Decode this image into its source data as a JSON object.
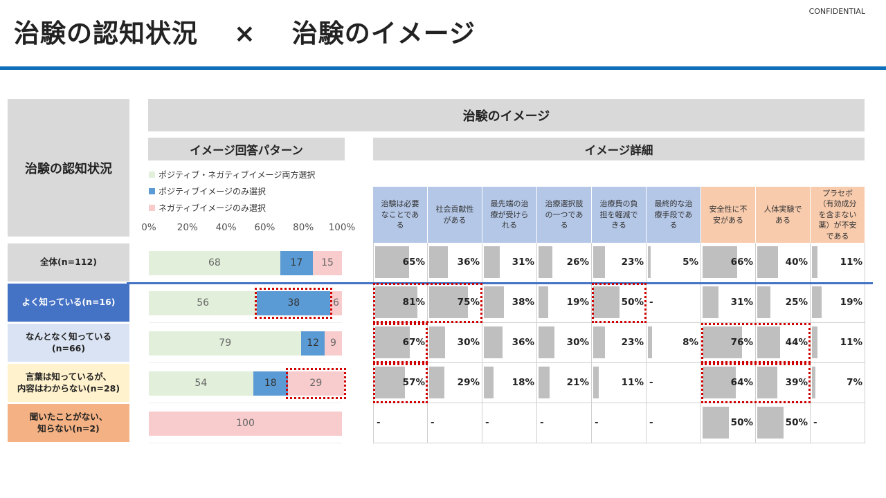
{
  "title": "治験の認知状況　 ×　 治験のイメージ",
  "confidential": "CONFIDENTIAL",
  "headers": {
    "image_main": "治験のイメージ",
    "left_main": "治験の認知状況",
    "pattern": "イメージ回答パターン",
    "detail": "イメージ詳細"
  },
  "legend": [
    {
      "label": "ポジティブ・ネガティブイメージ両方選択",
      "color": "#e2efda"
    },
    {
      "label": "ポジティブイメージのみ選択",
      "color": "#5b9bd5"
    },
    {
      "label": "ネガティブイメージのみ選択",
      "color": "#f8cbcc"
    }
  ],
  "axis_ticks": [
    "0%",
    "20%",
    "40%",
    "60%",
    "80%",
    "100%"
  ],
  "rows": [
    {
      "label": "全体(n=112)",
      "bg": "#d9d9d9",
      "color": "#222222"
    },
    {
      "label": "よく知っている(n=16)",
      "bg": "#4472c4",
      "color": "#ffffff"
    },
    {
      "label": "なんとなく知っている\n(n=66)",
      "bg": "#dae3f3",
      "color": "#222222"
    },
    {
      "label": "言葉は知っているが、\n内容はわからない(n=28)",
      "bg": "#fff2cc",
      "color": "#222222"
    },
    {
      "label": "聞いたことがない、\n知らない(n=2)",
      "bg": "#f4b183",
      "color": "#222222"
    }
  ],
  "columns": [
    {
      "label": "治験は必要\nなことであ\nる",
      "bg": "#b4c7e7"
    },
    {
      "label": "社会貢献性\nがある",
      "bg": "#b4c7e7"
    },
    {
      "label": "最先端の治\n療が受けら\nれる",
      "bg": "#b4c7e7"
    },
    {
      "label": "治療選択肢\nの一つであ\nる",
      "bg": "#b4c7e7"
    },
    {
      "label": "治療費の負\n担を軽減で\nきる",
      "bg": "#b4c7e7"
    },
    {
      "label": "最終的な治\n療手段であ\nる",
      "bg": "#b4c7e7"
    },
    {
      "label": "安全性に不\n安がある",
      "bg": "#f8cbad"
    },
    {
      "label": "人体実験で\nある",
      "bg": "#f8cbad"
    },
    {
      "label": "プラセボ\n（有効成分\nを含まない\n薬）が不安\nである",
      "bg": "#f8cbad"
    }
  ],
  "chart_data": [
    {
      "type": "bar",
      "orientation": "horizontal-stacked",
      "title": "イメージ回答パターン",
      "xlim": [
        0,
        100
      ],
      "categories": [
        "全体(n=112)",
        "よく知っている(n=16)",
        "なんとなく知っている(n=66)",
        "言葉は知っているが、内容はわからない(n=28)",
        "聞いたことがない、知らない(n=2)"
      ],
      "series": [
        {
          "name": "ポジティブ・ネガティブイメージ両方選択",
          "values": [
            68,
            56,
            79,
            54,
            null
          ],
          "labels": [
            "68",
            "56",
            "79",
            "54",
            ""
          ]
        },
        {
          "name": "ポジティブイメージのみ選択",
          "values": [
            17,
            38,
            12,
            18,
            null
          ],
          "labels": [
            "17",
            "38",
            "12",
            "18",
            ""
          ]
        },
        {
          "name": "ネガティブイメージのみ選択",
          "values": [
            15,
            6,
            9,
            29,
            100
          ],
          "labels": [
            "15",
            "6",
            "9",
            "29",
            "100"
          ]
        }
      ],
      "highlights": [
        {
          "row": 1,
          "series": 1
        },
        {
          "row": 3,
          "series": 2
        }
      ]
    },
    {
      "type": "table",
      "title": "イメージ詳細",
      "scale_max": 100,
      "values": [
        [
          65,
          36,
          31,
          26,
          23,
          5,
          66,
          40,
          11
        ],
        [
          81,
          75,
          38,
          19,
          50,
          null,
          31,
          25,
          19
        ],
        [
          67,
          30,
          36,
          30,
          23,
          8,
          76,
          44,
          11
        ],
        [
          57,
          29,
          18,
          21,
          11,
          null,
          64,
          39,
          7
        ],
        [
          null,
          null,
          null,
          null,
          null,
          null,
          50,
          50,
          null
        ]
      ],
      "labels": [
        [
          "65%",
          "36%",
          "31%",
          "26%",
          "23%",
          "5%",
          "66%",
          "40%",
          "11%"
        ],
        [
          "81%",
          "75%",
          "38%",
          "19%",
          "50%",
          "-",
          "31%",
          "25%",
          "19%"
        ],
        [
          "67%",
          "30%",
          "36%",
          "30%",
          "23%",
          "8%",
          "76%",
          "44%",
          "11%"
        ],
        [
          "57%",
          "29%",
          "18%",
          "21%",
          "11%",
          "-",
          "64%",
          "39%",
          "7%"
        ],
        [
          "-",
          "-",
          "-",
          "-",
          "-",
          "-",
          "50%",
          "50%",
          "-"
        ]
      ],
      "highlights": [
        {
          "row": 1,
          "cols": [
            0,
            1
          ]
        },
        {
          "row": 1,
          "cols": [
            4
          ]
        },
        {
          "row": 2,
          "cols": [
            0
          ]
        },
        {
          "row": 3,
          "cols": [
            0
          ]
        },
        {
          "row": 2,
          "cols": [
            6,
            7
          ]
        },
        {
          "row": 3,
          "cols": [
            6,
            7
          ]
        }
      ]
    }
  ]
}
